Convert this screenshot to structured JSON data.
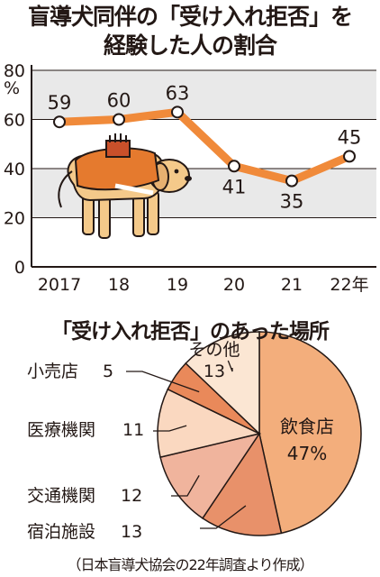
{
  "title_line1": "盲導犬同伴の「受け入れ拒否」を",
  "title_line2": "経験した人の割合",
  "chart2_title": "「受け入れ拒否」のあった場所",
  "source": "（日本盲導犬協会の22年調査より作成）",
  "chart_data": [
    {
      "type": "line",
      "x": [
        "2017",
        "18",
        "19",
        "20",
        "21",
        "22年"
      ],
      "series": [
        {
          "values": [
            59,
            60,
            63,
            41,
            35,
            45
          ]
        }
      ],
      "ylabel": "%",
      "ylim": [
        0,
        80
      ],
      "yticks": [
        "0",
        "20",
        "40",
        "60",
        "80"
      ],
      "grid": true,
      "colors": {
        "line": "#f08a3a",
        "band": "#e9e9e9"
      }
    },
    {
      "type": "pie",
      "categories": [
        "飲食店",
        "宿泊施設",
        "交通機関",
        "医療機関",
        "小売店",
        "その他"
      ],
      "values": [
        47,
        13,
        12,
        11,
        5,
        13
      ],
      "value_labels": [
        "47%",
        "13",
        "12",
        "11",
        "5",
        "13"
      ],
      "colors": [
        "#f3ae7c",
        "#e8916a",
        "#f0b49d",
        "#fad8c0",
        "#e9895a",
        "#fbe6d3"
      ]
    }
  ]
}
